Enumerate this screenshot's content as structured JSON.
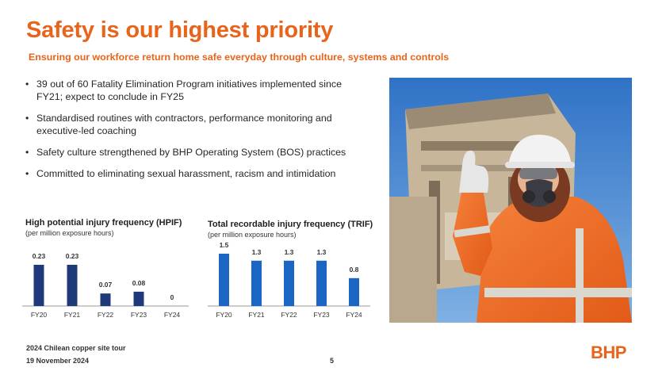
{
  "slide": {
    "title": "Safety is our highest priority",
    "subtitle": "Ensuring our workforce return home safe everyday through culture, systems and controls",
    "bullets": [
      "39 out of 60 Fatality Elimination Program initiatives implemented since FY21; expect to conclude in FY25",
      "Standardised routines with contractors, performance monitoring and executive-led coaching",
      "Safety culture strengthened by BHP Operating System (BOS) practices",
      "Committed to eliminating sexual harassment, racism and intimidation"
    ]
  },
  "chart_data": [
    {
      "type": "bar",
      "title": "High potential injury frequency (HPIF)",
      "subtitle": "(per million exposure hours)",
      "categories": [
        "FY20",
        "FY21",
        "FY22",
        "FY23",
        "FY24"
      ],
      "values": [
        0.23,
        0.23,
        0.07,
        0.08,
        0
      ],
      "value_labels": [
        "0.23",
        "0.23",
        "0.07",
        "0.08",
        "0"
      ],
      "color": "#1F3A7A",
      "ylim": [
        0,
        0.23
      ]
    },
    {
      "type": "bar",
      "title": "Total recordable injury frequency (TRIF)",
      "subtitle": "(per million exposure hours)",
      "categories": [
        "FY20",
        "FY21",
        "FY22",
        "FY23",
        "FY24"
      ],
      "values": [
        1.5,
        1.3,
        1.3,
        1.3,
        0.8
      ],
      "value_labels": [
        "1.5",
        "1.3",
        "1.3",
        "1.3",
        "0.8"
      ],
      "color": "#1A66C2",
      "ylim": [
        0,
        1.5
      ]
    }
  ],
  "photo": {
    "icon": "worker-thumbs-up-photo"
  },
  "footer": {
    "event": "2024 Chilean copper site tour",
    "date": "19 November 2024",
    "page": "5",
    "logo": "BHP"
  },
  "colors": {
    "accent": "#E8641B",
    "hpif_bar": "#1F3A7A",
    "trif_bar": "#1A66C2"
  }
}
